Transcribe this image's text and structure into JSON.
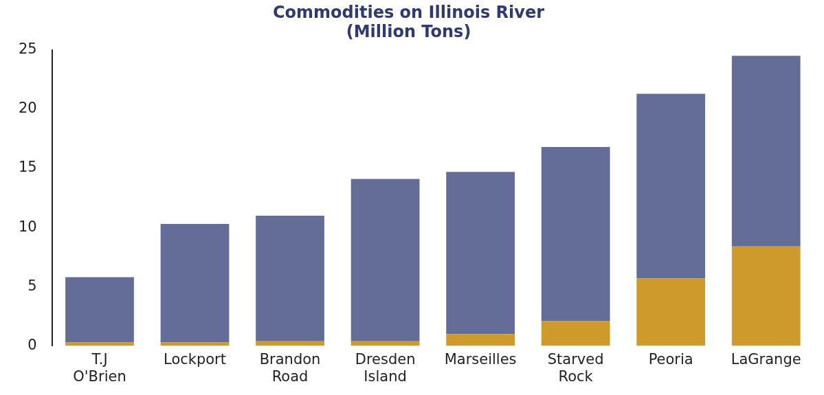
{
  "chart_data": {
    "type": "bar",
    "title": "Commodities on Illinois River",
    "subtitle": "(Million Tons)",
    "categories": [
      "T.J O'Brien",
      "Lockport",
      "Brandon Road",
      "Dresden Island",
      "Marseilles",
      "Starved Rock",
      "Peoria",
      "LaGrange"
    ],
    "stacked": true,
    "series": [
      {
        "color": "#cf9a2c",
        "values": [
          0.3,
          0.3,
          0.4,
          0.4,
          1.0,
          2.1,
          5.7,
          8.4
        ]
      },
      {
        "color": "#636d98",
        "values": [
          5.5,
          10.0,
          10.6,
          13.7,
          13.7,
          14.7,
          15.6,
          16.1
        ]
      }
    ],
    "ylim": [
      0,
      25
    ],
    "yticks": [
      0,
      5,
      10,
      15,
      20,
      25
    ],
    "grid": false,
    "legend": false
  }
}
